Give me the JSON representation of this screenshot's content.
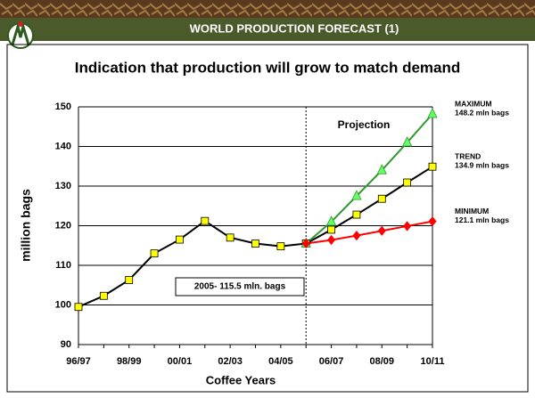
{
  "header": {
    "title": "WORLD PRODUCTION FORECAST (1)"
  },
  "chart_data": {
    "type": "line",
    "title": "Indication that production will grow to match demand",
    "x_label": "Coffee Years",
    "y_label": "million bags",
    "categories": [
      "96/97",
      null,
      "98/99",
      null,
      "00/01",
      null,
      "02/03",
      null,
      "04/05",
      null,
      "06/07",
      null,
      "08/09",
      null,
      "10/11"
    ],
    "ylim": [
      90,
      150
    ],
    "yticks": [
      90,
      100,
      110,
      120,
      130,
      140,
      150
    ],
    "grid": true,
    "series": [
      {
        "color": "#000000",
        "marker": "square",
        "marker_color": "#ffff00",
        "values": [
          99.5,
          102.3,
          106.3,
          113,
          116.5,
          121.2,
          117,
          115.5,
          114.8,
          115.5,
          null,
          null,
          null,
          null,
          null
        ]
      },
      {
        "name": "TREND",
        "color": "#000000",
        "marker": "square",
        "marker_color": "#ffff00",
        "values": [
          null,
          null,
          null,
          null,
          null,
          null,
          null,
          null,
          null,
          115.5,
          119,
          122.8,
          126.8,
          130.9,
          134.9
        ],
        "value_labels": [
          null,
          null,
          null,
          null,
          null,
          null,
          null,
          null,
          null,
          null,
          null,
          null,
          null,
          null,
          "134.9 mln bags"
        ]
      },
      {
        "name": "MAXIMUM",
        "color": "#2e9a2e",
        "marker": "triangle",
        "marker_color": "#66ff66",
        "values": [
          null,
          null,
          null,
          null,
          null,
          null,
          null,
          null,
          null,
          115.5,
          121,
          127.5,
          134,
          141,
          148.2
        ],
        "value_labels": [
          null,
          null,
          null,
          null,
          null,
          null,
          null,
          null,
          null,
          null,
          null,
          null,
          null,
          null,
          "148.2 mln bags"
        ]
      },
      {
        "name": "MINIMUM",
        "color": "#ff0000",
        "marker": "diamond",
        "marker_color": "#ff0000",
        "values": [
          null,
          null,
          null,
          null,
          null,
          null,
          null,
          null,
          null,
          115.5,
          116.4,
          117.5,
          118.7,
          119.9,
          121.1
        ],
        "value_labels": [
          null,
          null,
          null,
          null,
          null,
          null,
          null,
          null,
          null,
          null,
          null,
          null,
          null,
          null,
          "121.1 mln bags"
        ]
      }
    ],
    "annotations": [
      {
        "text": "Projection"
      },
      {
        "text": "2005- 115.5 mln. bags"
      }
    ]
  }
}
